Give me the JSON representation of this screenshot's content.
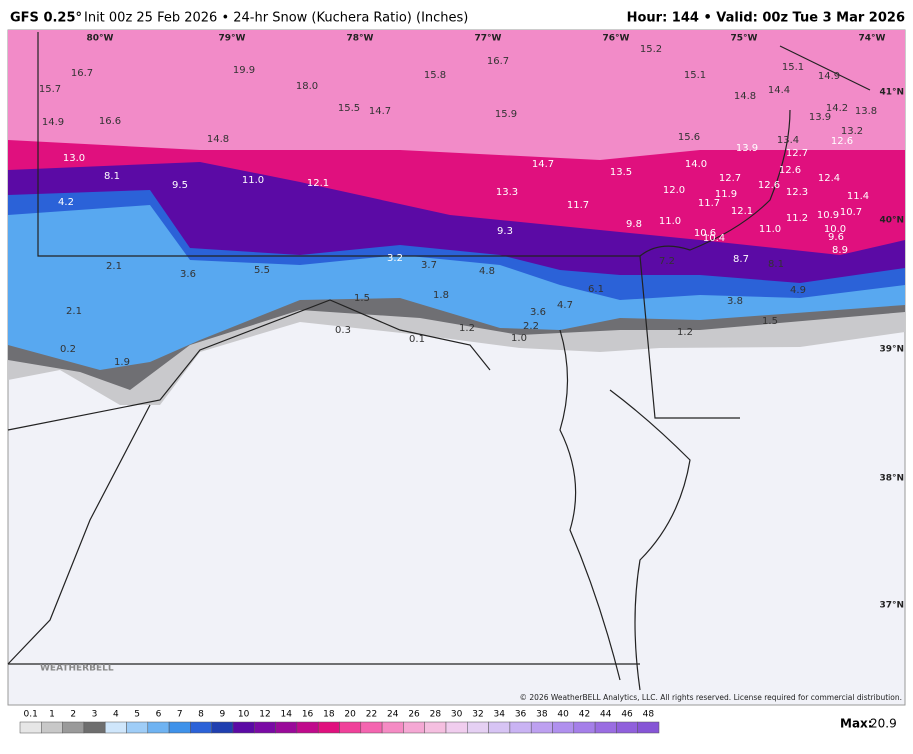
{
  "header": {
    "model": "GFS 0.25°",
    "subtitle": "Init 00z 25 Feb 2026 • 24-hr Snow (Kuchera Ratio) (Inches)",
    "right": "Hour: 144 • Valid: 00z Tue 3 Mar 2026"
  },
  "map": {
    "longitudes": [
      "80°W",
      "79°W",
      "78°W",
      "77°W",
      "76°W",
      "75°W",
      "74°W"
    ],
    "latitudes": [
      "41°N",
      "40°N",
      "39°N",
      "38°N",
      "37°N"
    ],
    "point_values": [
      "16.7",
      "19.9",
      "18.0",
      "15.8",
      "16.7",
      "15.2",
      "15.1",
      "15.1",
      "14.9",
      "15.7",
      "16.6",
      "15.5",
      "14.7",
      "15.9",
      "14.8",
      "14.4",
      "14.2",
      "13.9",
      "13.8",
      "14.9",
      "14.8",
      "15.6",
      "13.4",
      "13.9",
      "13.2",
      "12.7",
      "12.6",
      "13.0",
      "14.7",
      "13.5",
      "14.0",
      "12.7",
      "12.6",
      "12.4",
      "12.6",
      "12.3",
      "8.1",
      "9.5",
      "11.0",
      "12.1",
      "13.3",
      "11.7",
      "12.0",
      "11.9",
      "11.7",
      "12.1",
      "11.4",
      "4.2",
      "11.2",
      "10.9",
      "10.7",
      "9.3",
      "9.8",
      "11.0",
      "11.0",
      "10.6",
      "10.4",
      "10.0",
      "9.6",
      "8.9",
      "7.2",
      "8.7",
      "8.1",
      "3.2",
      "3.7",
      "4.8",
      "2.1",
      "3.6",
      "5.5",
      "6.1",
      "4.9",
      "3.8",
      "1.5",
      "1.8",
      "4.7",
      "3.6",
      "2.1",
      "1.5",
      "1.2",
      "2.2",
      "0.3",
      "1.2",
      "1.0",
      "0.1",
      "0.2",
      "1.9"
    ],
    "logo": "WEATHERBELL",
    "copyright": "© 2026 WeatherBELL Analytics, LLC. All rights reserved. License required for commercial distribution."
  },
  "colorbar": {
    "labels": [
      0.1,
      1,
      2,
      3,
      4,
      5,
      6,
      7,
      8,
      9,
      10,
      12,
      14,
      16,
      18,
      20,
      22,
      24,
      26,
      28,
      30,
      32,
      34,
      36,
      38,
      40,
      42,
      44,
      46,
      48
    ]
  },
  "footer": {
    "max_label": "Max:",
    "max_value": "20.9"
  }
}
